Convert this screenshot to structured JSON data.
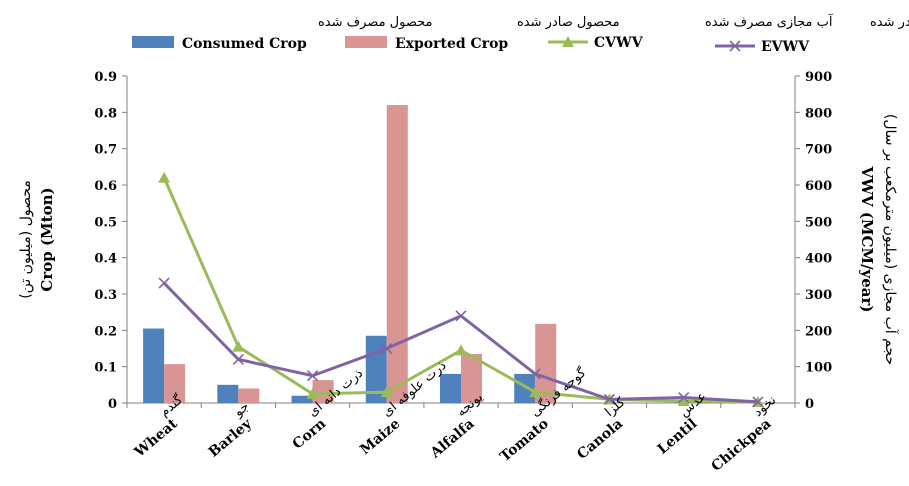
{
  "chart_data": {
    "type": "bar",
    "categories": [
      {
        "en": "Wheat",
        "fa": "گندم"
      },
      {
        "en": "Barley",
        "fa": "جو"
      },
      {
        "en": "Corn",
        "fa": "ذرت دانه ای"
      },
      {
        "en": "Maize",
        "fa": "ذرت علوفه ای"
      },
      {
        "en": "Alfalfa",
        "fa": "یونجه"
      },
      {
        "en": "Tomato",
        "fa": "گوجه فرنگی"
      },
      {
        "en": "Canola",
        "fa": "کلزا"
      },
      {
        "en": "Lentil",
        "fa": "عدس"
      },
      {
        "en": "Chickpea",
        "fa": "نخود"
      }
    ],
    "series": [
      {
        "name": "Consumed Crop",
        "name_fa": "محصول مصرف شده",
        "kind": "bar",
        "axis": "left",
        "color": "#4f81bd",
        "values": [
          0.205,
          0.05,
          0.02,
          0.185,
          0.08,
          0.08,
          0,
          0,
          0
        ]
      },
      {
        "name": "Exported Crop",
        "name_fa": "محصول صادر شده",
        "kind": "bar",
        "axis": "left",
        "color": "#d99594",
        "values": [
          0.107,
          0.04,
          0.063,
          0.82,
          0.135,
          0.218,
          0,
          0,
          0
        ]
      },
      {
        "name": "CVWV",
        "name_fa": "آب مجازی مصرف شده",
        "kind": "line",
        "axis": "right",
        "color": "#9bbb59",
        "marker": "triangle",
        "values": [
          620,
          155,
          25,
          30,
          145,
          30,
          10,
          5,
          3
        ]
      },
      {
        "name": "EVWV",
        "name_fa": "آب مجازی صادر شده",
        "kind": "line",
        "axis": "right",
        "color": "#8064a2",
        "marker": "x",
        "values": [
          330,
          120,
          75,
          150,
          240,
          80,
          10,
          15,
          3
        ]
      }
    ],
    "yaxis_left": {
      "label": "Crop (Mton)",
      "label_fa": "محصول (میلیون تن)",
      "range": [
        0,
        0.9
      ],
      "ticks": [
        "0",
        "0.1",
        "0.2",
        "0.3",
        "0.4",
        "0.5",
        "0.6",
        "0.7",
        "0.8",
        "0.9"
      ]
    },
    "yaxis_right": {
      "label": "VWV (MCM/year)",
      "label_fa": "حجم آب مجازی (میلیون مترمکعب بر سال)",
      "range": [
        0,
        900
      ],
      "ticks": [
        "0",
        "100",
        "200",
        "300",
        "400",
        "500",
        "600",
        "700",
        "800",
        "900"
      ]
    },
    "grid": false,
    "legend": "top"
  }
}
